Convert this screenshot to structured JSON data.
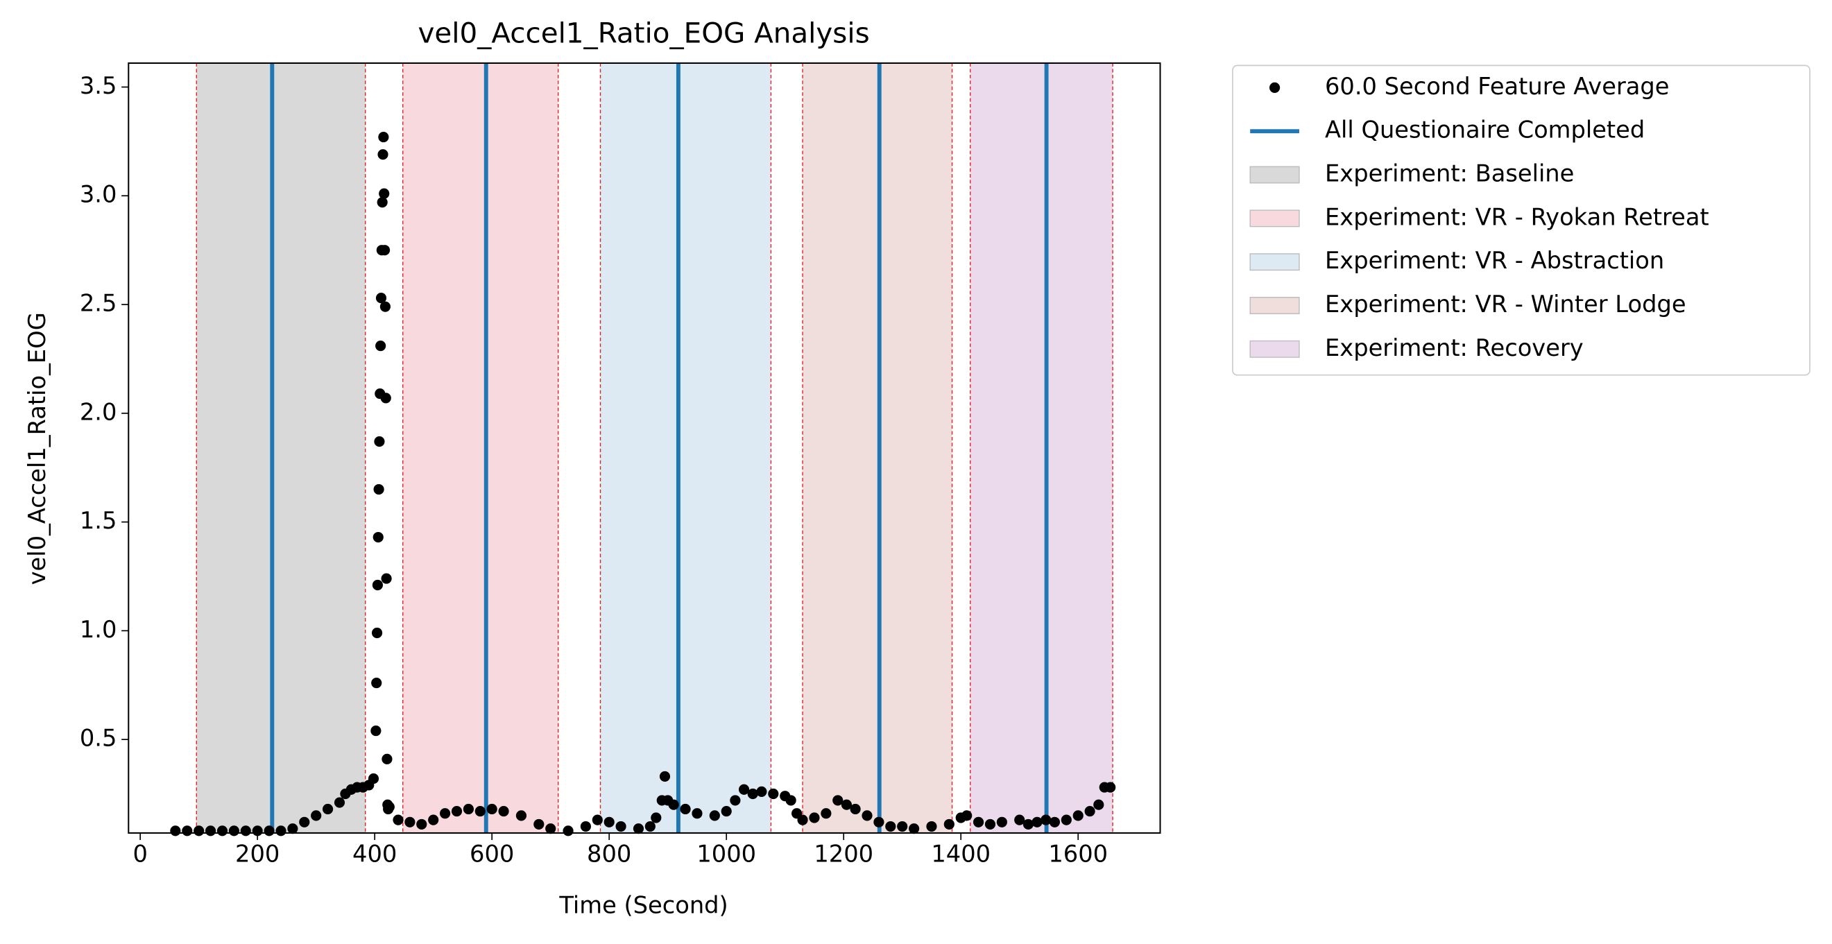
{
  "chart_data": {
    "type": "scatter",
    "title": "vel0_Accel1_Ratio_EOG Analysis",
    "x_label": "Time (Second)",
    "y_label": "vel0_Accel1_Ratio_EOG",
    "xlim": [
      -20,
      1740
    ],
    "ylim": [
      0.07,
      3.61
    ],
    "xticks": [
      0,
      200,
      400,
      600,
      800,
      1000,
      1200,
      1400,
      1600
    ],
    "yticks": [
      0.5,
      {
        "value": 1,
        "label": "1.0"
      },
      1.5,
      {
        "value": 2,
        "label": "2.0"
      },
      2.5,
      {
        "value": 3,
        "label": "3.0"
      },
      3.5
    ],
    "series": [
      {
        "name": "60.0 Second Feature Average",
        "color": "#000000",
        "x": [
          60,
          80,
          100,
          120,
          140,
          160,
          180,
          200,
          220,
          240,
          260,
          280,
          300,
          320,
          340,
          350,
          360,
          370,
          380,
          390,
          398,
          402,
          403,
          404,
          405,
          406,
          407,
          408,
          409,
          410,
          411,
          412,
          413,
          414,
          415,
          416,
          417,
          418,
          419,
          420,
          421,
          422,
          423,
          425,
          440,
          460,
          480,
          500,
          520,
          540,
          560,
          580,
          600,
          620,
          650,
          680,
          700,
          730,
          760,
          780,
          800,
          820,
          850,
          870,
          880,
          890,
          895,
          900,
          910,
          930,
          950,
          980,
          1000,
          1015,
          1030,
          1045,
          1060,
          1080,
          1100,
          1110,
          1120,
          1130,
          1150,
          1170,
          1190,
          1205,
          1220,
          1240,
          1260,
          1280,
          1300,
          1320,
          1350,
          1380,
          1400,
          1410,
          1430,
          1450,
          1470,
          1500,
          1515,
          1530,
          1545,
          1560,
          1580,
          1600,
          1620,
          1635,
          1645,
          1655
        ],
        "values": [
          0.08,
          0.08,
          0.08,
          0.08,
          0.08,
          0.08,
          0.08,
          0.08,
          0.08,
          0.08,
          0.09,
          0.12,
          0.15,
          0.18,
          0.21,
          0.25,
          0.27,
          0.28,
          0.28,
          0.29,
          0.32,
          0.54,
          0.76,
          0.99,
          1.21,
          1.43,
          1.65,
          1.87,
          2.09,
          2.31,
          2.53,
          2.75,
          2.97,
          3.19,
          3.27,
          3.01,
          2.75,
          2.49,
          2.07,
          1.24,
          0.41,
          0.2,
          0.18,
          0.19,
          0.13,
          0.12,
          0.11,
          0.13,
          0.16,
          0.17,
          0.18,
          0.17,
          0.18,
          0.17,
          0.15,
          0.11,
          0.09,
          0.08,
          0.1,
          0.13,
          0.12,
          0.1,
          0.09,
          0.1,
          0.14,
          0.22,
          0.33,
          0.22,
          0.2,
          0.18,
          0.16,
          0.15,
          0.17,
          0.22,
          0.27,
          0.25,
          0.26,
          0.25,
          0.24,
          0.22,
          0.16,
          0.13,
          0.14,
          0.16,
          0.22,
          0.2,
          0.18,
          0.15,
          0.12,
          0.1,
          0.1,
          0.09,
          0.1,
          0.11,
          0.14,
          0.15,
          0.12,
          0.11,
          0.12,
          0.13,
          0.11,
          0.12,
          0.13,
          0.12,
          0.13,
          0.15,
          0.17,
          0.2,
          0.28,
          0.28
        ]
      }
    ],
    "vlines": {
      "name": "All Questionaire Completed",
      "color": "#1f77b4",
      "x": [
        225,
        590,
        918,
        1261,
        1546
      ]
    },
    "spans": [
      {
        "name": "Experiment: Baseline",
        "color": "#d9d9d9",
        "start": 96,
        "end": 384
      },
      {
        "name": "Experiment: VR - Ryokan Retreat",
        "color": "#f8dade",
        "start": 448,
        "end": 713
      },
      {
        "name": "Experiment: VR - Abstraction",
        "color": "#dde9f3",
        "start": 785,
        "end": 1076
      },
      {
        "name": "Experiment: VR - Winter Lodge",
        "color": "#f0dedd",
        "start": 1130,
        "end": 1385
      },
      {
        "name": "Experiment: Recovery",
        "color": "#ebdaec",
        "start": 1416,
        "end": 1659
      }
    ]
  }
}
